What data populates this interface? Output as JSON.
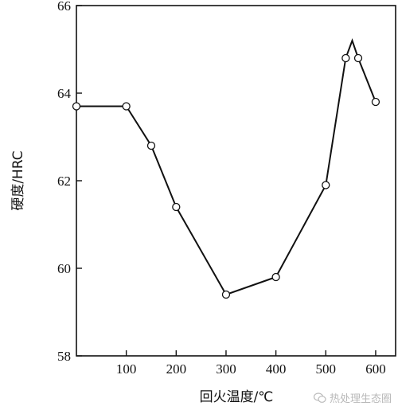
{
  "chart_data": {
    "type": "line",
    "xlabel": "回火温度/℃",
    "ylabel": "硬度/HRC",
    "xlim": [
      0,
      640
    ],
    "ylim": [
      58,
      66
    ],
    "x_ticks": [
      100,
      200,
      300,
      400,
      500,
      600
    ],
    "y_ticks": [
      58,
      60,
      62,
      64,
      66
    ],
    "series": [
      {
        "x": [
          0,
          100,
          150,
          200,
          300,
          400,
          500,
          540,
          553,
          565,
          600
        ],
        "y": [
          63.7,
          63.7,
          62.8,
          61.4,
          59.4,
          59.8,
          61.9,
          64.8,
          65.2,
          64.8,
          63.8
        ],
        "markers": [
          true,
          true,
          true,
          true,
          true,
          true,
          true,
          true,
          false,
          true,
          true
        ]
      }
    ],
    "grid": false
  },
  "watermark": {
    "text": "热处理生态圈",
    "icon": "wechat-icon"
  }
}
